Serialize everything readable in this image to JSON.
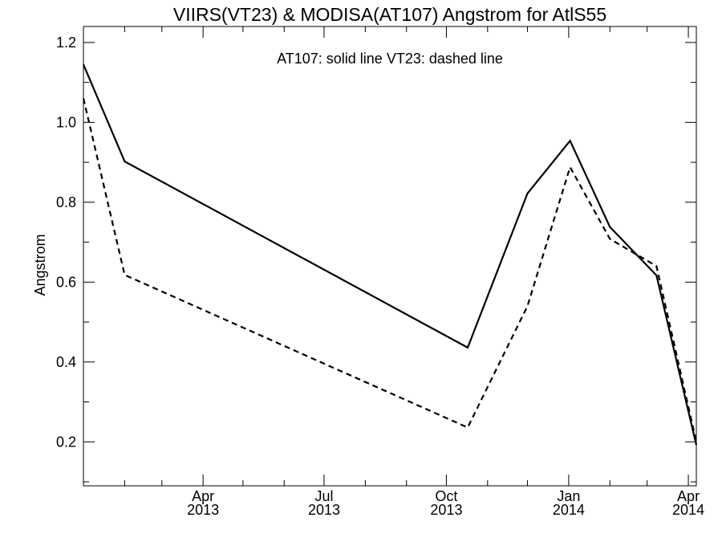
{
  "chart_data": {
    "type": "line",
    "title": "VIIRS(VT23) & MODISA(AT107)  Angstrom for AtlS55",
    "annotation": "AT107: solid line   VT23: dashed line",
    "ylabel": "Angstrom",
    "xlabel": "",
    "xlim": [
      "2013-01-01",
      "2014-04-07"
    ],
    "ylim": [
      0.09,
      1.24
    ],
    "y_ticks": [
      "0.2",
      "0.4",
      "0.6",
      "0.8",
      "1.0",
      "1.2"
    ],
    "y_tick_values": [
      0.2,
      0.4,
      0.6,
      0.8,
      1.0,
      1.2
    ],
    "x_ticks": [
      {
        "date": "2013-04-01",
        "line1": "Apr",
        "line2": "2013"
      },
      {
        "date": "2013-07-01",
        "line1": "Jul",
        "line2": "2013"
      },
      {
        "date": "2013-10-01",
        "line1": "Oct",
        "line2": "2013"
      },
      {
        "date": "2014-01-01",
        "line1": "Jan",
        "line2": "2014"
      },
      {
        "date": "2014-04-01",
        "line1": "Apr",
        "line2": "2014"
      }
    ],
    "x_minor_ticks": [
      "2013-02-01",
      "2013-03-01",
      "2013-05-01",
      "2013-06-01",
      "2013-08-01",
      "2013-09-01",
      "2013-11-01",
      "2013-12-01",
      "2014-02-01",
      "2014-03-01"
    ],
    "grid": false,
    "series": [
      {
        "name": "AT107",
        "style": "solid",
        "color": "#000000",
        "points": [
          {
            "x": "2013-01-01",
            "y": 1.145
          },
          {
            "x": "2013-02-01",
            "y": 0.902
          },
          {
            "x": "2013-10-17",
            "y": 0.436
          },
          {
            "x": "2013-12-01",
            "y": 0.822
          },
          {
            "x": "2014-01-02",
            "y": 0.954
          },
          {
            "x": "2014-02-01",
            "y": 0.738
          },
          {
            "x": "2014-03-08",
            "y": 0.617
          },
          {
            "x": "2014-04-07",
            "y": 0.192
          }
        ]
      },
      {
        "name": "VT23",
        "style": "dashed",
        "color": "#000000",
        "points": [
          {
            "x": "2013-01-01",
            "y": 1.06
          },
          {
            "x": "2013-02-01",
            "y": 0.618
          },
          {
            "x": "2013-10-17",
            "y": 0.236
          },
          {
            "x": "2013-12-01",
            "y": 0.54
          },
          {
            "x": "2014-01-02",
            "y": 0.888
          },
          {
            "x": "2014-02-01",
            "y": 0.708
          },
          {
            "x": "2014-03-08",
            "y": 0.64
          },
          {
            "x": "2014-04-07",
            "y": 0.2
          }
        ]
      }
    ]
  }
}
